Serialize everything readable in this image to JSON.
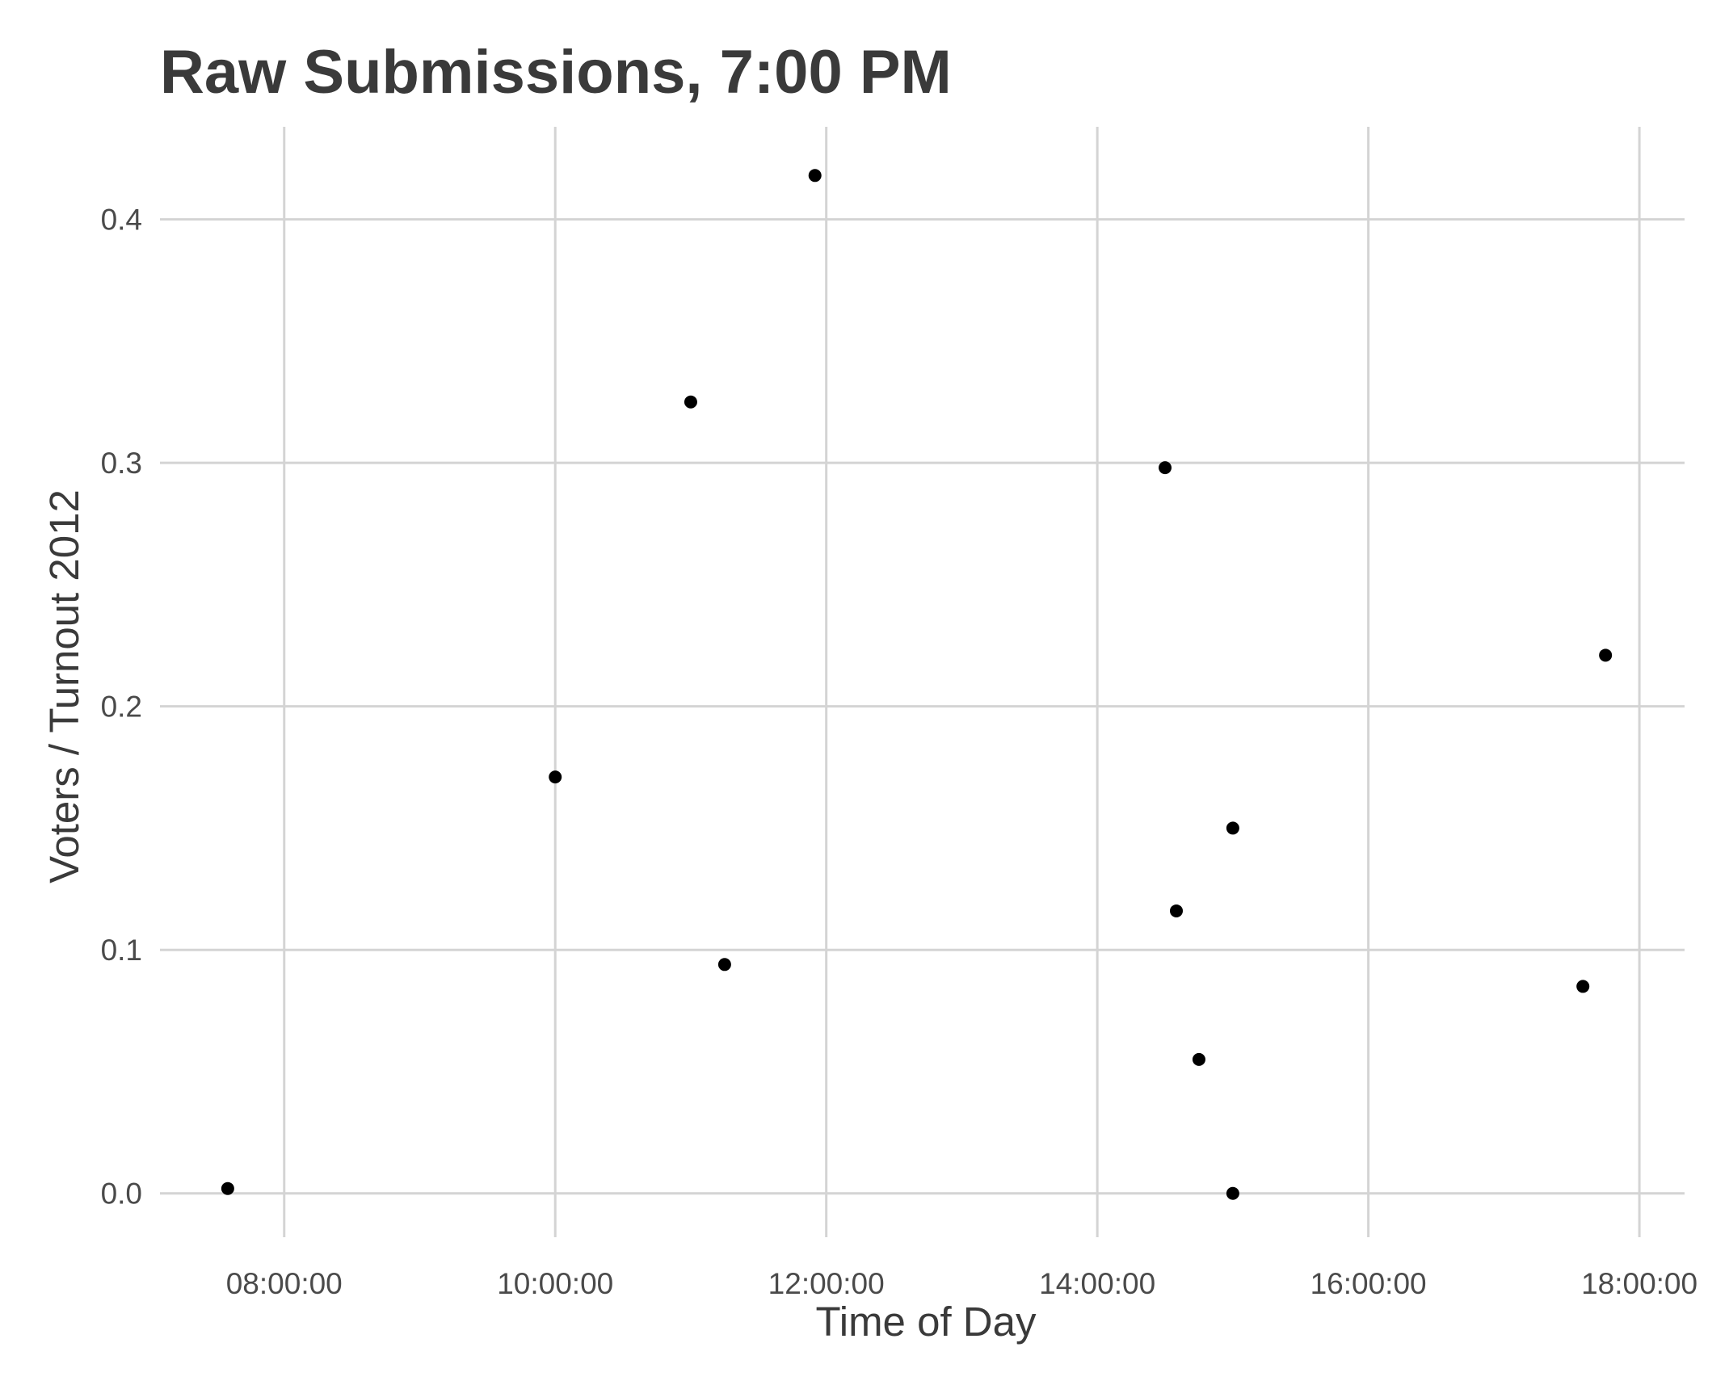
{
  "chart_data": {
    "type": "scatter",
    "title": "Raw Submissions, 7:00 PM",
    "xlabel": "Time of Day",
    "ylabel": "Voters / Turnout 2012",
    "x_type": "time",
    "xlim": [
      "07:05:00",
      "18:20:00"
    ],
    "ylim": [
      -0.018,
      0.438
    ],
    "x_ticks": [
      "08:00:00",
      "10:00:00",
      "12:00:00",
      "14:00:00",
      "16:00:00",
      "18:00:00"
    ],
    "y_ticks": [
      0.0,
      0.1,
      0.2,
      0.3,
      0.4
    ],
    "y_tick_labels": [
      "0.0",
      "0.1",
      "0.2",
      "0.3",
      "0.4"
    ],
    "grid": true,
    "point_color": "#000000",
    "grid_color": "#d4d4d4",
    "points": [
      {
        "x": "07:35:00",
        "y": 0.002
      },
      {
        "x": "10:00:00",
        "y": 0.171
      },
      {
        "x": "11:00:00",
        "y": 0.325
      },
      {
        "x": "11:15:00",
        "y": 0.094
      },
      {
        "x": "11:55:00",
        "y": 0.418
      },
      {
        "x": "14:30:00",
        "y": 0.298
      },
      {
        "x": "14:35:00",
        "y": 0.116
      },
      {
        "x": "14:45:00",
        "y": 0.055
      },
      {
        "x": "15:00:00",
        "y": 0.15
      },
      {
        "x": "15:00:00",
        "y": 0.0
      },
      {
        "x": "17:35:00",
        "y": 0.085
      },
      {
        "x": "17:45:00",
        "y": 0.221
      }
    ]
  }
}
